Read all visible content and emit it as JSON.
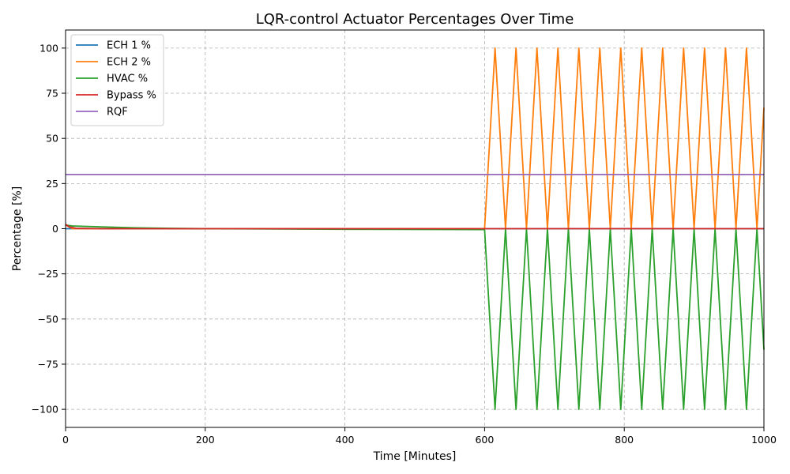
{
  "chart_data": {
    "type": "line",
    "title": "LQR-control Actuator Percentages Over Time",
    "xlabel": "Time [Minutes]",
    "ylabel": "Percentage [%]",
    "xlim": [
      0,
      1000
    ],
    "ylim": [
      -110,
      110
    ],
    "xticks": [
      0,
      200,
      400,
      600,
      800,
      1000
    ],
    "xtick_labels": [
      "0",
      "200",
      "400",
      "600",
      "800",
      "1000"
    ],
    "yticks": [
      -100,
      -75,
      -50,
      -25,
      0,
      25,
      50,
      75,
      100
    ],
    "ytick_labels": [
      "−100",
      "−75",
      "−50",
      "−25",
      "0",
      "25",
      "50",
      "75",
      "100"
    ],
    "grid": true,
    "legend_position": "top-left",
    "series": [
      {
        "name": "ECH 1 %",
        "color": "#1f77b4",
        "x": [
          0,
          1000
        ],
        "y": [
          0,
          0
        ]
      },
      {
        "name": "ECH 2 %",
        "color": "#ff7f0e",
        "x": [
          0,
          10,
          30,
          100,
          200,
          400,
          600,
          615,
          630,
          645,
          660,
          675,
          690,
          705,
          720,
          735,
          750,
          765,
          780,
          795,
          810,
          825,
          840,
          855,
          870,
          885,
          900,
          915,
          930,
          945,
          960,
          975,
          990,
          1000
        ],
        "y": [
          2,
          0,
          0,
          0,
          0,
          0,
          0,
          100,
          0,
          100,
          0,
          100,
          0,
          100,
          0,
          100,
          0,
          100,
          0,
          100,
          0,
          100,
          0,
          100,
          0,
          100,
          0,
          100,
          0,
          100,
          0,
          100,
          0,
          67
        ]
      },
      {
        "name": "HVAC %",
        "color": "#2ca02c",
        "x": [
          0,
          10,
          50,
          100,
          150,
          200,
          400,
          600,
          615,
          630,
          645,
          660,
          675,
          690,
          705,
          720,
          735,
          750,
          765,
          780,
          795,
          810,
          825,
          855,
          870,
          885,
          900,
          915,
          930,
          945,
          960,
          975,
          990,
          1000,
          840
        ],
        "y": [
          2,
          1.5,
          1,
          0.5,
          0.2,
          0,
          -0.3,
          -0.5,
          -100,
          0,
          -100,
          0,
          -100,
          0,
          -100,
          0,
          -100,
          0,
          -100,
          0,
          -100,
          0,
          -100,
          -100,
          0,
          -100,
          0,
          -100,
          0,
          -100,
          0,
          -100,
          0,
          -67,
          0
        ]
      },
      {
        "name": "Bypass %",
        "color": "#d62728",
        "x": [
          0,
          5,
          15,
          50,
          200,
          600,
          1000
        ],
        "y": [
          2.5,
          1,
          0.2,
          0,
          0,
          0,
          0
        ]
      },
      {
        "name": "RQF",
        "color": "#9467bd",
        "x": [
          0,
          1000
        ],
        "y": [
          30,
          30
        ]
      }
    ]
  }
}
